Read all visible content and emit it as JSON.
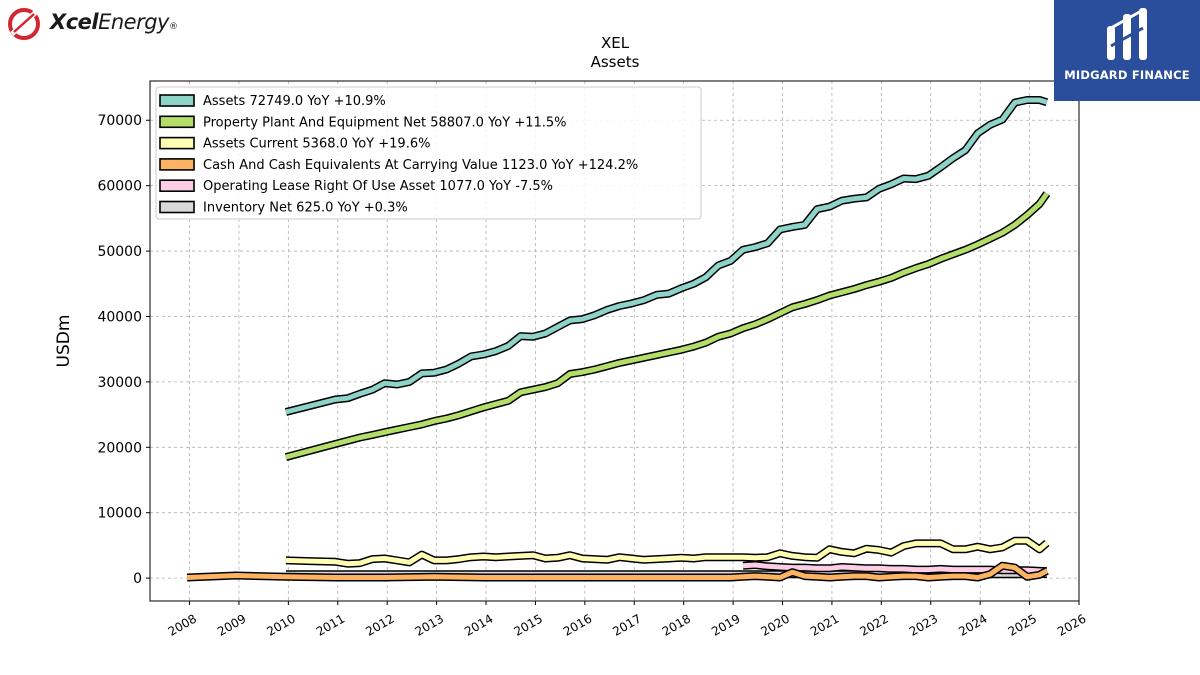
{
  "brand": {
    "left_logo_bold": "Xcel",
    "left_logo_light": "Energy",
    "left_logo_mark": "®",
    "right_logo_text": "MIDGARD FINANCE",
    "right_logo_bg": "#2a4e9c",
    "left_logo_color": "#d22630"
  },
  "chart_data": {
    "type": "line",
    "title": "XEL",
    "subtitle": "Assets",
    "xlabel": "",
    "ylabel": "USDm",
    "xlim": [
      2007.2,
      2026.0
    ],
    "ylim": [
      -3500,
      76000
    ],
    "yticks": [
      0,
      10000,
      20000,
      30000,
      40000,
      50000,
      60000,
      70000
    ],
    "xticks": [
      "2008",
      "2009",
      "2010",
      "2011",
      "2012",
      "2013",
      "2014",
      "2015",
      "2016",
      "2017",
      "2018",
      "2019",
      "2020",
      "2021",
      "2022",
      "2023",
      "2024",
      "2025",
      "2026"
    ],
    "grid": true,
    "legend_position": "top-left",
    "series": [
      {
        "name": "Assets  72749.0 YoY +10.9%",
        "color": "#8dd3c7",
        "x": [
          2009.95,
          2010.95,
          2011.2,
          2011.45,
          2011.7,
          2011.95,
          2012.2,
          2012.45,
          2012.7,
          2012.95,
          2013.2,
          2013.45,
          2013.7,
          2013.95,
          2014.2,
          2014.45,
          2014.7,
          2014.95,
          2015.2,
          2015.45,
          2015.7,
          2015.95,
          2016.2,
          2016.45,
          2016.7,
          2016.95,
          2017.2,
          2017.45,
          2017.7,
          2017.95,
          2018.2,
          2018.45,
          2018.7,
          2018.95,
          2019.2,
          2019.45,
          2019.7,
          2019.95,
          2020.2,
          2020.45,
          2020.7,
          2020.95,
          2021.2,
          2021.45,
          2021.7,
          2021.95,
          2022.2,
          2022.45,
          2022.7,
          2022.95,
          2023.2,
          2023.45,
          2023.7,
          2023.95,
          2024.2,
          2024.45,
          2024.7,
          2024.95,
          2025.2,
          2025.35
        ],
        "y": [
          25400,
          27300,
          27500,
          28200,
          28800,
          29800,
          29600,
          30000,
          31300,
          31400,
          31900,
          32800,
          33900,
          34200,
          34700,
          35500,
          37000,
          36900,
          37400,
          38400,
          39400,
          39600,
          40200,
          41000,
          41600,
          42000,
          42500,
          43300,
          43500,
          44300,
          45000,
          46000,
          47800,
          48500,
          50200,
          50600,
          51200,
          53300,
          53700,
          54000,
          56400,
          56800,
          57700,
          58000,
          58200,
          59500,
          60200,
          61100,
          61000,
          61500,
          62800,
          64200,
          65400,
          68000,
          69300,
          70100,
          72700,
          73100,
          73100,
          72749
        ]
      },
      {
        "name": "Property Plant And Equipment Net  58807.0 YoY +11.5%",
        "color": "#b3de69",
        "x": [
          2009.95,
          2010.95,
          2011.2,
          2011.45,
          2011.7,
          2011.95,
          2012.2,
          2012.45,
          2012.7,
          2012.95,
          2013.2,
          2013.45,
          2013.7,
          2013.95,
          2014.2,
          2014.45,
          2014.7,
          2014.95,
          2015.2,
          2015.45,
          2015.7,
          2015.95,
          2016.2,
          2016.45,
          2016.7,
          2016.95,
          2017.2,
          2017.45,
          2017.7,
          2017.95,
          2018.2,
          2018.45,
          2018.7,
          2018.95,
          2019.2,
          2019.45,
          2019.7,
          2019.95,
          2020.2,
          2020.45,
          2020.7,
          2020.95,
          2021.2,
          2021.45,
          2021.7,
          2021.95,
          2022.2,
          2022.45,
          2022.7,
          2022.95,
          2023.2,
          2023.45,
          2023.7,
          2023.95,
          2024.2,
          2024.45,
          2024.7,
          2024.95,
          2025.2,
          2025.35
        ],
        "y": [
          18500,
          20500,
          21000,
          21500,
          21900,
          22300,
          22700,
          23100,
          23500,
          24000,
          24400,
          24900,
          25500,
          26100,
          26600,
          27100,
          28400,
          28800,
          29200,
          29800,
          31200,
          31500,
          31900,
          32400,
          32900,
          33300,
          33700,
          34100,
          34500,
          34900,
          35400,
          36000,
          36900,
          37400,
          38200,
          38800,
          39600,
          40500,
          41400,
          41900,
          42500,
          43200,
          43700,
          44200,
          44800,
          45300,
          45900,
          46700,
          47400,
          48000,
          48800,
          49500,
          50200,
          51000,
          51900,
          52800,
          54000,
          55500,
          57200,
          58807
        ]
      },
      {
        "name": "Assets Current  5368.0 YoY +19.6%",
        "color": "#ffffb3",
        "x": [
          2009.95,
          2010.45,
          2010.95,
          2011.2,
          2011.45,
          2011.7,
          2011.95,
          2012.2,
          2012.45,
          2012.7,
          2012.95,
          2013.2,
          2013.45,
          2013.7,
          2013.95,
          2014.2,
          2014.45,
          2014.7,
          2014.95,
          2015.2,
          2015.45,
          2015.7,
          2015.95,
          2016.2,
          2016.45,
          2016.7,
          2016.95,
          2017.2,
          2017.45,
          2017.7,
          2017.95,
          2018.2,
          2018.45,
          2018.7,
          2018.95,
          2019.2,
          2019.45,
          2019.7,
          2019.95,
          2020.2,
          2020.45,
          2020.7,
          2020.95,
          2021.2,
          2021.45,
          2021.7,
          2021.95,
          2022.2,
          2022.45,
          2022.7,
          2022.95,
          2023.2,
          2023.45,
          2023.7,
          2023.95,
          2024.2,
          2024.45,
          2024.7,
          2024.95,
          2025.2,
          2025.35
        ],
        "y": [
          2700,
          2600,
          2500,
          2200,
          2300,
          2900,
          3000,
          2700,
          2400,
          3600,
          2700,
          2700,
          2900,
          3200,
          3300,
          3200,
          3300,
          3400,
          3500,
          3000,
          3100,
          3500,
          3000,
          2900,
          2800,
          3200,
          3000,
          2800,
          2900,
          3000,
          3100,
          3000,
          3200,
          3200,
          3200,
          3200,
          3100,
          3200,
          3800,
          3400,
          3200,
          3100,
          4400,
          4000,
          3800,
          4500,
          4300,
          3900,
          4900,
          5300,
          5300,
          5300,
          4400,
          4400,
          4800,
          4400,
          4700,
          5700,
          5700,
          4400,
          5368
        ]
      },
      {
        "name": "Cash And Cash Equivalents At Carrying Value  1123.0 YoY +124.2%",
        "color": "#fdb462",
        "x": [
          2007.95,
          2008.95,
          2009.95,
          2010.95,
          2011.95,
          2012.95,
          2013.95,
          2014.95,
          2015.95,
          2016.95,
          2017.95,
          2018.95,
          2019.2,
          2019.45,
          2019.7,
          2019.95,
          2020.2,
          2020.45,
          2020.7,
          2020.95,
          2021.2,
          2021.45,
          2021.7,
          2021.95,
          2022.2,
          2022.45,
          2022.7,
          2022.95,
          2023.2,
          2023.45,
          2023.7,
          2023.95,
          2024.2,
          2024.45,
          2024.7,
          2024.95,
          2025.2,
          2025.35
        ],
        "y": [
          100,
          400,
          200,
          100,
          100,
          200,
          100,
          100,
          100,
          100,
          100,
          100,
          200,
          300,
          200,
          100,
          900,
          300,
          200,
          100,
          200,
          300,
          300,
          100,
          200,
          300,
          300,
          100,
          200,
          300,
          300,
          100,
          600,
          1900,
          1600,
          200,
          500,
          1123
        ]
      },
      {
        "name": "Operating Lease Right Of Use Asset  1077.0 YoY -7.5%",
        "color": "#fccde5",
        "x": [
          2019.2,
          2019.45,
          2019.7,
          2019.95,
          2020.2,
          2020.45,
          2020.7,
          2020.95,
          2021.2,
          2021.45,
          2021.7,
          2021.95,
          2022.2,
          2022.45,
          2022.7,
          2022.95,
          2023.2,
          2023.45,
          2023.7,
          2023.95,
          2024.2,
          2024.45,
          2024.7,
          2024.95,
          2025.2,
          2025.35
        ],
        "y": [
          1900,
          2000,
          1800,
          1700,
          1600,
          1600,
          1500,
          1500,
          1700,
          1600,
          1500,
          1500,
          1400,
          1400,
          1300,
          1300,
          1400,
          1300,
          1300,
          1300,
          1300,
          1200,
          1200,
          1200,
          1100,
          1077
        ]
      },
      {
        "name": "Inventory Net  625.0 YoY +0.3%",
        "color": "#d9d9d9",
        "x": [
          2009.95,
          2010.95,
          2011.95,
          2012.95,
          2013.95,
          2014.95,
          2015.95,
          2016.95,
          2017.95,
          2018.95,
          2019.95,
          2020.95,
          2021.95,
          2022.95,
          2023.95,
          2024.95,
          2025.35
        ],
        "y": [
          600,
          600,
          600,
          600,
          600,
          600,
          600,
          600,
          600,
          600,
          600,
          600,
          600,
          600,
          600,
          600,
          625
        ]
      }
    ]
  }
}
